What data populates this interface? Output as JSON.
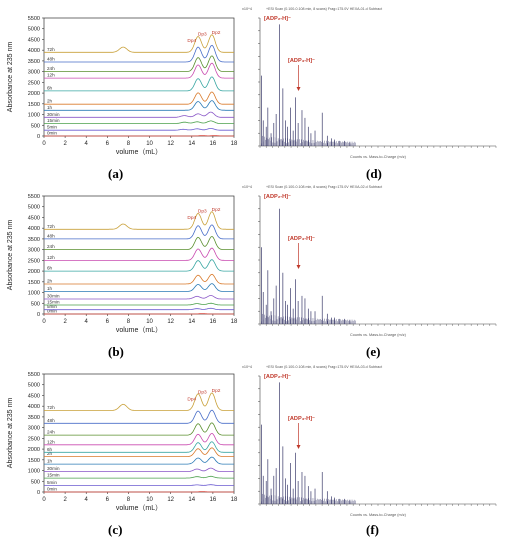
{
  "chart_data": [
    {
      "panel": "(a)",
      "type": "line",
      "ylabel": "Absorbance at 235 nm",
      "xlabel": "volume（mL）",
      "xlim": [
        0,
        18
      ],
      "ylim": [
        0,
        5500
      ],
      "xticks": [
        "0",
        "2",
        "4",
        "6",
        "8",
        "10",
        "12",
        "14",
        "16",
        "18"
      ],
      "yticks": [
        "0",
        "500",
        "1000",
        "1500",
        "2000",
        "2500",
        "3000",
        "3500",
        "4000",
        "4500",
        "5000",
        "5500"
      ],
      "peak_labels": [
        "Dp4",
        "Dp3",
        "Dp2"
      ],
      "series": [
        {
          "name": "0min",
          "baseline": 0,
          "peaks": [
            [
              15,
              0.02
            ],
            [
              16.2,
              0.02
            ]
          ],
          "color": "#d6453b"
        },
        {
          "name": "5min",
          "baseline": 270,
          "peaks": [
            [
              13.2,
              0.05
            ],
            [
              14.5,
              0.08
            ],
            [
              15.8,
              0.1
            ]
          ],
          "color": "#6b5bd1"
        },
        {
          "name": "15min",
          "baseline": 580,
          "peaks": [
            [
              13.3,
              0.08
            ],
            [
              14.5,
              0.1
            ],
            [
              15.8,
              0.15
            ]
          ],
          "color": "#4ba04b"
        },
        {
          "name": "30min",
          "baseline": 870,
          "peaks": [
            [
              13.3,
              0.1
            ],
            [
              14.6,
              0.2
            ],
            [
              15.8,
              0.3
            ]
          ],
          "color": "#8a57c7"
        },
        {
          "name": "1h",
          "baseline": 1200,
          "peaks": [
            [
              14.6,
              0.5
            ],
            [
              15.9,
              0.55
            ]
          ],
          "color": "#2c7bb6"
        },
        {
          "name": "2h",
          "baseline": 1480,
          "peaks": [
            [
              14.6,
              0.65
            ],
            [
              15.9,
              0.7
            ]
          ],
          "color": "#d97a2b"
        },
        {
          "name": "6h",
          "baseline": 2100,
          "peaks": [
            [
              14.6,
              0.7
            ],
            [
              15.9,
              0.8
            ]
          ],
          "color": "#3aa7a3"
        },
        {
          "name": "12h",
          "baseline": 2700,
          "peaks": [
            [
              14.6,
              0.75
            ],
            [
              15.9,
              0.85
            ]
          ],
          "color": "#c94bb0"
        },
        {
          "name": "24h",
          "baseline": 3000,
          "peaks": [
            [
              14.6,
              0.8
            ],
            [
              15.9,
              0.9
            ]
          ],
          "color": "#5a8f2e"
        },
        {
          "name": "48h",
          "baseline": 3450,
          "peaks": [
            [
              14.6,
              0.85
            ],
            [
              15.9,
              0.95
            ]
          ],
          "color": "#4a6fc9"
        },
        {
          "name": "72h",
          "baseline": 3900,
          "peaks": [
            [
              7.5,
              0.3
            ],
            [
              14.6,
              0.9
            ],
            [
              15.9,
              1.0
            ]
          ],
          "color": "#c9a13a"
        }
      ]
    },
    {
      "panel": "(b)",
      "type": "line",
      "ylabel": "Absorbance at 235 nm",
      "xlabel": "volume（mL）",
      "xlim": [
        0,
        18
      ],
      "ylim": [
        0,
        5500
      ],
      "xticks": [
        "0",
        "2",
        "4",
        "6",
        "8",
        "10",
        "12",
        "14",
        "16",
        "18"
      ],
      "yticks": [
        "0",
        "500",
        "1000",
        "1500",
        "2000",
        "2500",
        "3000",
        "3500",
        "4000",
        "4500",
        "5000",
        "5500"
      ],
      "peak_labels": [
        "Dp4",
        "Dp3",
        "Dp2"
      ],
      "series": [
        {
          "name": "0min",
          "baseline": 0,
          "peaks": [
            [
              15,
              0.02
            ]
          ],
          "color": "#d6453b"
        },
        {
          "name": "5min",
          "baseline": 200,
          "peaks": [
            [
              14.5,
              0.06
            ],
            [
              15.8,
              0.08
            ]
          ],
          "color": "#6b5bd1"
        },
        {
          "name": "15min",
          "baseline": 420,
          "peaks": [
            [
              14.5,
              0.08
            ],
            [
              15.8,
              0.1
            ]
          ],
          "color": "#4ba04b"
        },
        {
          "name": "30min",
          "baseline": 700,
          "peaks": [
            [
              14.5,
              0.15
            ],
            [
              15.8,
              0.2
            ]
          ],
          "color": "#8a57c7"
        },
        {
          "name": "1h",
          "baseline": 1050,
          "peaks": [
            [
              14.6,
              0.4
            ],
            [
              15.9,
              0.45
            ]
          ],
          "color": "#2c7bb6"
        },
        {
          "name": "2h",
          "baseline": 1400,
          "peaks": [
            [
              14.6,
              0.5
            ],
            [
              15.9,
              0.55
            ]
          ],
          "color": "#d97a2b"
        },
        {
          "name": "6h",
          "baseline": 2000,
          "peaks": [
            [
              14.6,
              0.6
            ],
            [
              15.9,
              0.65
            ]
          ],
          "color": "#3aa7a3"
        },
        {
          "name": "12h",
          "baseline": 2500,
          "peaks": [
            [
              14.6,
              0.65
            ],
            [
              15.9,
              0.7
            ]
          ],
          "color": "#c94bb0"
        },
        {
          "name": "24h",
          "baseline": 3000,
          "peaks": [
            [
              14.6,
              0.7
            ],
            [
              15.9,
              0.75
            ]
          ],
          "color": "#5a8f2e"
        },
        {
          "name": "48h",
          "baseline": 3500,
          "peaks": [
            [
              14.6,
              0.75
            ],
            [
              15.9,
              0.8
            ]
          ],
          "color": "#4a6fc9"
        },
        {
          "name": "72h",
          "baseline": 3950,
          "peaks": [
            [
              7.5,
              0.3
            ],
            [
              14.6,
              0.9
            ],
            [
              15.9,
              1.0
            ]
          ],
          "color": "#c9a13a"
        }
      ]
    },
    {
      "panel": "(c)",
      "type": "line",
      "ylabel": "Absorbance at 235 nm",
      "xlabel": "volume（mL）",
      "xlim": [
        0,
        18
      ],
      "ylim": [
        0,
        5500
      ],
      "xticks": [
        "0",
        "2",
        "4",
        "6",
        "8",
        "10",
        "12",
        "14",
        "16",
        "18"
      ],
      "yticks": [
        "0",
        "500",
        "1000",
        "1500",
        "2000",
        "2500",
        "3000",
        "3500",
        "4000",
        "4500",
        "5000",
        "5500"
      ],
      "peak_labels": [
        "Dp4",
        "Dp3",
        "Dp2"
      ],
      "series": [
        {
          "name": "0min",
          "baseline": 0,
          "peaks": [
            [
              15,
              0.02
            ]
          ],
          "color": "#d6453b"
        },
        {
          "name": "5min",
          "baseline": 300,
          "peaks": [
            [
              14.5,
              0.04
            ],
            [
              15.8,
              0.05
            ]
          ],
          "color": "#6b5bd1"
        },
        {
          "name": "15min",
          "baseline": 650,
          "peaks": [
            [
              14.5,
              0.08
            ],
            [
              15.8,
              0.1
            ]
          ],
          "color": "#4ba04b"
        },
        {
          "name": "30min",
          "baseline": 950,
          "peaks": [
            [
              14.5,
              0.15
            ],
            [
              15.8,
              0.2
            ]
          ],
          "color": "#8a57c7"
        },
        {
          "name": "1h",
          "baseline": 1300,
          "peaks": [
            [
              14.6,
              0.35
            ],
            [
              15.9,
              0.4
            ]
          ],
          "color": "#2c7bb6"
        },
        {
          "name": "2h",
          "baseline": 1650,
          "peaks": [
            [
              14.6,
              0.45
            ],
            [
              15.9,
              0.5
            ]
          ],
          "color": "#d97a2b"
        },
        {
          "name": "6h",
          "baseline": 1850,
          "peaks": [
            [
              14.6,
              0.55
            ],
            [
              15.9,
              0.6
            ]
          ],
          "color": "#3aa7a3"
        },
        {
          "name": "12h",
          "baseline": 2200,
          "peaks": [
            [
              14.6,
              0.6
            ],
            [
              15.9,
              0.65
            ]
          ],
          "color": "#c94bb0"
        },
        {
          "name": "24h",
          "baseline": 2650,
          "peaks": [
            [
              14.6,
              0.65
            ],
            [
              15.9,
              0.7
            ]
          ],
          "color": "#5a8f2e"
        },
        {
          "name": "48h",
          "baseline": 3200,
          "peaks": [
            [
              14.6,
              0.7
            ],
            [
              15.9,
              0.75
            ]
          ],
          "color": "#4a6fc9"
        },
        {
          "name": "72h",
          "baseline": 3800,
          "peaks": [
            [
              7.5,
              0.35
            ],
            [
              14.6,
              0.95
            ],
            [
              15.9,
              1.0
            ]
          ],
          "color": "#c9a13a"
        }
      ]
    },
    {
      "panel": "(d)",
      "type": "bar",
      "header": "+ESI Scan (0.100-0.108 min, 8 scans) Frag=175.0V HEXA-01.d  Subtract",
      "scale_label": "x10^4",
      "xlabel": "Counts vs. Mass-to-Charge (m/z)",
      "annotations": [
        "[ADP₂-H]⁻",
        "[ADP₃-H]⁻"
      ],
      "stick_mz": [
        112,
        126,
        150,
        163,
        189,
        211,
        230,
        257,
        284,
        304,
        321,
        345,
        367,
        386,
        407,
        438,
        462,
        489,
        510,
        543,
        601,
        642,
        675,
        701,
        738,
        781,
        823
      ],
      "stick_rel": [
        0.55,
        0.2,
        0.15,
        0.3,
        0.1,
        0.18,
        0.25,
        0.95,
        0.45,
        0.2,
        0.15,
        0.3,
        0.12,
        0.38,
        0.18,
        0.28,
        0.22,
        0.15,
        0.1,
        0.12,
        0.26,
        0.08,
        0.06,
        0.05,
        0.04,
        0.04,
        0.03
      ]
    },
    {
      "panel": "(e)",
      "type": "bar",
      "header": "+ESI Scan (0.100-0.108 min, 8 scans) Frag=175.0V HEXA-02.d  Subtract",
      "scale_label": "x10^4",
      "xlabel": "Counts vs. Mass-to-Charge (m/z)",
      "annotations": [
        "[ADP₂-H]⁻",
        "[ADP₃-H]⁻"
      ],
      "stick_mz": [
        112,
        126,
        150,
        163,
        189,
        211,
        230,
        257,
        284,
        304,
        321,
        345,
        367,
        386,
        407,
        438,
        462,
        489,
        510,
        543,
        601,
        642,
        675,
        701,
        738,
        781,
        823
      ],
      "stick_rel": [
        0.6,
        0.25,
        0.15,
        0.42,
        0.1,
        0.2,
        0.3,
        0.9,
        0.4,
        0.18,
        0.15,
        0.28,
        0.12,
        0.35,
        0.18,
        0.22,
        0.2,
        0.12,
        0.1,
        0.1,
        0.22,
        0.08,
        0.05,
        0.05,
        0.04,
        0.04,
        0.03
      ]
    },
    {
      "panel": "(f)",
      "type": "bar",
      "header": "+ESI Scan (0.100-0.108 min, 8 scans) Frag=175.0V HEXA-03.d  Subtract",
      "scale_label": "x10^4",
      "xlabel": "Counts vs. Mass-to-Charge (m/z)",
      "annotations": [
        "[ADP₂-H]⁻",
        "[ADP₃-H]⁻"
      ],
      "stick_mz": [
        112,
        126,
        150,
        163,
        189,
        211,
        230,
        257,
        284,
        304,
        321,
        345,
        367,
        386,
        407,
        438,
        462,
        489,
        510,
        543,
        601,
        642,
        675,
        701,
        738,
        781,
        823
      ],
      "stick_rel": [
        0.62,
        0.22,
        0.18,
        0.35,
        0.12,
        0.22,
        0.28,
        0.95,
        0.45,
        0.2,
        0.15,
        0.32,
        0.12,
        0.4,
        0.18,
        0.25,
        0.22,
        0.14,
        0.1,
        0.12,
        0.25,
        0.1,
        0.06,
        0.05,
        0.04,
        0.04,
        0.03
      ]
    }
  ],
  "captions": [
    "(a)",
    "(b)",
    "(c)",
    "(d)",
    "(e)",
    "(f)"
  ]
}
